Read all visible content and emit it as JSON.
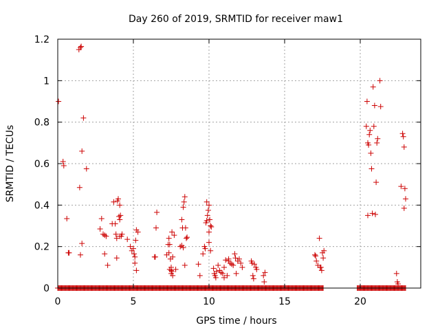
{
  "chart_data": {
    "type": "scatter",
    "title": "Day 260 of 2019, SRMTID for receiver maw1",
    "xlabel": "GPS time / hours",
    "ylabel": "SRMTID / TECUs",
    "xlim": [
      0,
      24
    ],
    "ylim": [
      0,
      1.2
    ],
    "xticks": [
      0,
      5,
      10,
      15,
      20
    ],
    "yticks": [
      0,
      0.2,
      0.4,
      0.6,
      0.8,
      1,
      1.2
    ],
    "xtick_labels": [
      "0",
      "5",
      "10",
      "15",
      "20"
    ],
    "ytick_labels": [
      "0",
      "0.2",
      "0.4",
      "0.6",
      "0.8",
      "1",
      "1.2"
    ],
    "grid": true,
    "marker": "plus",
    "color": "#cc0000",
    "series": [
      {
        "name": "SRMTID",
        "points": [
          [
            0.05,
            0.9
          ],
          [
            0.35,
            0.61
          ],
          [
            0.4,
            0.59
          ],
          [
            0.6,
            0.335
          ],
          [
            0.7,
            0.17
          ],
          [
            0.75,
            0.17
          ],
          [
            1.4,
            1.15
          ],
          [
            1.5,
            1.16
          ],
          [
            1.55,
            1.165
          ],
          [
            1.45,
            0.485
          ],
          [
            1.6,
            0.66
          ],
          [
            1.7,
            0.82
          ],
          [
            1.5,
            0.16
          ],
          [
            1.6,
            0.215
          ],
          [
            1.9,
            0.575
          ],
          [
            2.8,
            0.285
          ],
          [
            2.9,
            0.335
          ],
          [
            3.0,
            0.26
          ],
          [
            3.1,
            0.255
          ],
          [
            3.2,
            0.25
          ],
          [
            3.1,
            0.165
          ],
          [
            3.3,
            0.11
          ],
          [
            3.6,
            0.31
          ],
          [
            3.7,
            0.415
          ],
          [
            3.8,
            0.31
          ],
          [
            3.85,
            0.26
          ],
          [
            3.9,
            0.24
          ],
          [
            3.95,
            0.42
          ],
          [
            4.0,
            0.43
          ],
          [
            4.05,
            0.345
          ],
          [
            4.1,
            0.33
          ],
          [
            4.15,
            0.35
          ],
          [
            4.2,
            0.25
          ],
          [
            4.25,
            0.26
          ],
          [
            4.1,
            0.4
          ],
          [
            3.9,
            0.145
          ],
          [
            4.1,
            0.25
          ],
          [
            4.6,
            0.235
          ],
          [
            4.8,
            0.2
          ],
          [
            4.9,
            0.18
          ],
          [
            5.0,
            0.19
          ],
          [
            5.05,
            0.165
          ],
          [
            5.1,
            0.15
          ],
          [
            5.15,
            0.23
          ],
          [
            5.2,
            0.28
          ],
          [
            5.3,
            0.27
          ],
          [
            5.1,
            0.12
          ],
          [
            5.2,
            0.085
          ],
          [
            6.4,
            0.15
          ],
          [
            6.5,
            0.29
          ],
          [
            6.55,
            0.365
          ],
          [
            6.45,
            0.15
          ],
          [
            7.2,
            0.16
          ],
          [
            7.3,
            0.21
          ],
          [
            7.35,
            0.24
          ],
          [
            7.4,
            0.21
          ],
          [
            7.45,
            0.14
          ],
          [
            7.5,
            0.1
          ],
          [
            7.55,
            0.08
          ],
          [
            7.5,
            0.07
          ],
          [
            7.6,
            0.06
          ],
          [
            7.4,
            0.09
          ],
          [
            7.55,
            0.27
          ],
          [
            7.7,
            0.255
          ],
          [
            7.6,
            0.15
          ],
          [
            7.35,
            0.17
          ],
          [
            7.5,
            0.085
          ],
          [
            7.8,
            0.09
          ],
          [
            8.1,
            0.2
          ],
          [
            8.2,
            0.205
          ],
          [
            8.25,
            0.29
          ],
          [
            8.3,
            0.39
          ],
          [
            8.35,
            0.415
          ],
          [
            8.4,
            0.44
          ],
          [
            8.45,
            0.29
          ],
          [
            8.5,
            0.24
          ],
          [
            8.55,
            0.245
          ],
          [
            8.4,
            0.11
          ],
          [
            8.3,
            0.195
          ],
          [
            8.2,
            0.33
          ],
          [
            9.3,
            0.115
          ],
          [
            9.4,
            0.06
          ],
          [
            9.6,
            0.165
          ],
          [
            9.7,
            0.2
          ],
          [
            9.75,
            0.19
          ],
          [
            9.8,
            0.315
          ],
          [
            9.85,
            0.325
          ],
          [
            9.9,
            0.35
          ],
          [
            9.95,
            0.375
          ],
          [
            10.0,
            0.4
          ],
          [
            10.05,
            0.33
          ],
          [
            10.1,
            0.3
          ],
          [
            10.15,
            0.295
          ],
          [
            9.85,
            0.415
          ],
          [
            10.0,
            0.27
          ],
          [
            10.0,
            0.22
          ],
          [
            10.1,
            0.18
          ],
          [
            10.3,
            0.095
          ],
          [
            10.35,
            0.07
          ],
          [
            10.4,
            0.06
          ],
          [
            10.45,
            0.05
          ],
          [
            10.5,
            0.08
          ],
          [
            10.6,
            0.11
          ],
          [
            10.7,
            0.085
          ],
          [
            10.8,
            0.075
          ],
          [
            10.9,
            0.07
          ],
          [
            11.0,
            0.1
          ],
          [
            11.1,
            0.135
          ],
          [
            11.2,
            0.06
          ],
          [
            11.3,
            0.14
          ],
          [
            11.4,
            0.12
          ],
          [
            11.5,
            0.115
          ],
          [
            11.6,
            0.11
          ],
          [
            11.7,
            0.165
          ],
          [
            11.75,
            0.145
          ],
          [
            11.8,
            0.07
          ],
          [
            11.9,
            0.13
          ],
          [
            12.0,
            0.14
          ],
          [
            12.1,
            0.12
          ],
          [
            12.2,
            0.1
          ],
          [
            11.0,
            0.05
          ],
          [
            11.3,
            0.13
          ],
          [
            12.8,
            0.13
          ],
          [
            12.85,
            0.12
          ],
          [
            12.9,
            0.06
          ],
          [
            12.95,
            0.045
          ],
          [
            13.0,
            0.115
          ],
          [
            13.1,
            0.1
          ],
          [
            13.15,
            0.09
          ],
          [
            13.6,
            0.06
          ],
          [
            13.65,
            0.03
          ],
          [
            13.7,
            0.075
          ],
          [
            17.0,
            0.16
          ],
          [
            17.05,
            0.155
          ],
          [
            17.1,
            0.13
          ],
          [
            17.2,
            0.11
          ],
          [
            17.3,
            0.24
          ],
          [
            17.35,
            0.1
          ],
          [
            17.4,
            0.1
          ],
          [
            17.45,
            0.085
          ],
          [
            17.5,
            0.17
          ],
          [
            17.55,
            0.145
          ],
          [
            17.6,
            0.18
          ],
          [
            20.4,
            0.78
          ],
          [
            20.45,
            0.9
          ],
          [
            20.5,
            0.7
          ],
          [
            20.55,
            0.69
          ],
          [
            20.6,
            0.74
          ],
          [
            20.65,
            0.76
          ],
          [
            20.7,
            0.65
          ],
          [
            20.75,
            0.575
          ],
          [
            20.5,
            0.35
          ],
          [
            20.8,
            0.36
          ],
          [
            20.85,
            0.97
          ],
          [
            20.9,
            0.78
          ],
          [
            20.95,
            0.88
          ],
          [
            21.0,
            0.355
          ],
          [
            21.05,
            0.51
          ],
          [
            21.1,
            0.7
          ],
          [
            21.15,
            0.72
          ],
          [
            21.3,
            1.0
          ],
          [
            21.35,
            0.875
          ],
          [
            22.4,
            0.07
          ],
          [
            22.45,
            0.03
          ],
          [
            22.5,
            0.02
          ],
          [
            22.7,
            0.49
          ],
          [
            22.8,
            0.745
          ],
          [
            22.85,
            0.73
          ],
          [
            22.9,
            0.68
          ],
          [
            22.95,
            0.48
          ],
          [
            23.0,
            0.43
          ],
          [
            22.9,
            0.385
          ]
        ],
        "zero_segments": [
          [
            0.0,
            0.75
          ],
          [
            0.8,
            17.55
          ],
          [
            19.8,
            23.0
          ]
        ]
      }
    ]
  }
}
